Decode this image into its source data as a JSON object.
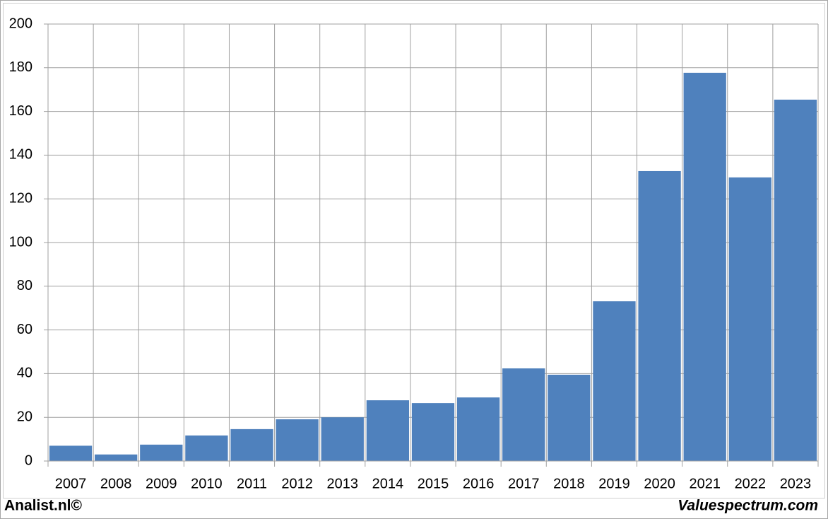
{
  "chart_data": {
    "type": "bar",
    "categories": [
      "2007",
      "2008",
      "2009",
      "2010",
      "2011",
      "2012",
      "2013",
      "2014",
      "2015",
      "2016",
      "2017",
      "2018",
      "2019",
      "2020",
      "2021",
      "2022",
      "2023"
    ],
    "values": [
      7,
      3,
      7.5,
      11.7,
      14.6,
      19.1,
      20,
      27.8,
      26.5,
      29.1,
      42.4,
      39.5,
      73.1,
      132.7,
      177.7,
      129.8,
      165.4
    ],
    "color": "#4f81bd",
    "ylim": [
      0,
      200
    ],
    "yticks": [
      0,
      20,
      40,
      60,
      80,
      100,
      120,
      140,
      160,
      180,
      200
    ],
    "grid": true
  },
  "footer": {
    "left": "Analist.nl©",
    "right": "Valuespectrum.com"
  }
}
